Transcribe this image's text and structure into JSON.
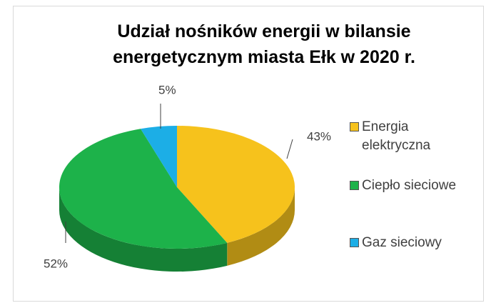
{
  "chart_data": {
    "type": "pie3d",
    "title": "Udział nośników energii w bilansie energetycznym miasta Ełk w 2020 r.",
    "categories": [
      "Energia elektryczna",
      "Ciepło sieciowe",
      "Gaz sieciowy"
    ],
    "values": [
      43,
      52,
      5
    ],
    "value_labels": [
      "43%",
      "52%",
      "5%"
    ],
    "colors": [
      "#f6c21c",
      "#1db24a",
      "#1caee6"
    ],
    "legend": "right"
  }
}
